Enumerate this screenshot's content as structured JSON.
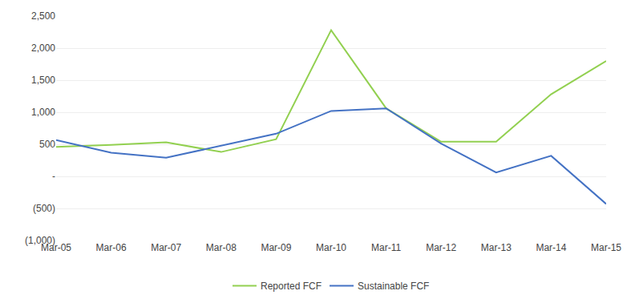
{
  "chart_data": {
    "type": "line",
    "categories": [
      "Mar-05",
      "Mar-06",
      "Mar-07",
      "Mar-08",
      "Mar-09",
      "Mar-10",
      "Mar-11",
      "Mar-12",
      "Mar-13",
      "Mar-14",
      "Mar-15"
    ],
    "series": [
      {
        "name": "Reported FCF",
        "color": "#92D050",
        "values": [
          460,
          490,
          530,
          380,
          580,
          2280,
          1060,
          540,
          540,
          1280,
          1800
        ]
      },
      {
        "name": "Sustainable FCF",
        "color": "#4472C4",
        "values": [
          565,
          370,
          290,
          480,
          665,
          1020,
          1060,
          510,
          60,
          320,
          -430
        ]
      }
    ],
    "ylim": [
      -1000,
      2500
    ],
    "yticks": [
      {
        "value": -1000,
        "label": "(1,000)"
      },
      {
        "value": -500,
        "label": "(500)"
      },
      {
        "value": 0,
        "label": "-"
      },
      500,
      {
        "value": 1000,
        "label": "1,000"
      },
      {
        "value": 1500,
        "label": "1,500"
      },
      {
        "value": 2000,
        "label": "2,000"
      },
      {
        "value": 2500,
        "label": "2,500"
      }
    ],
    "grid": true,
    "legend": "bottom"
  }
}
